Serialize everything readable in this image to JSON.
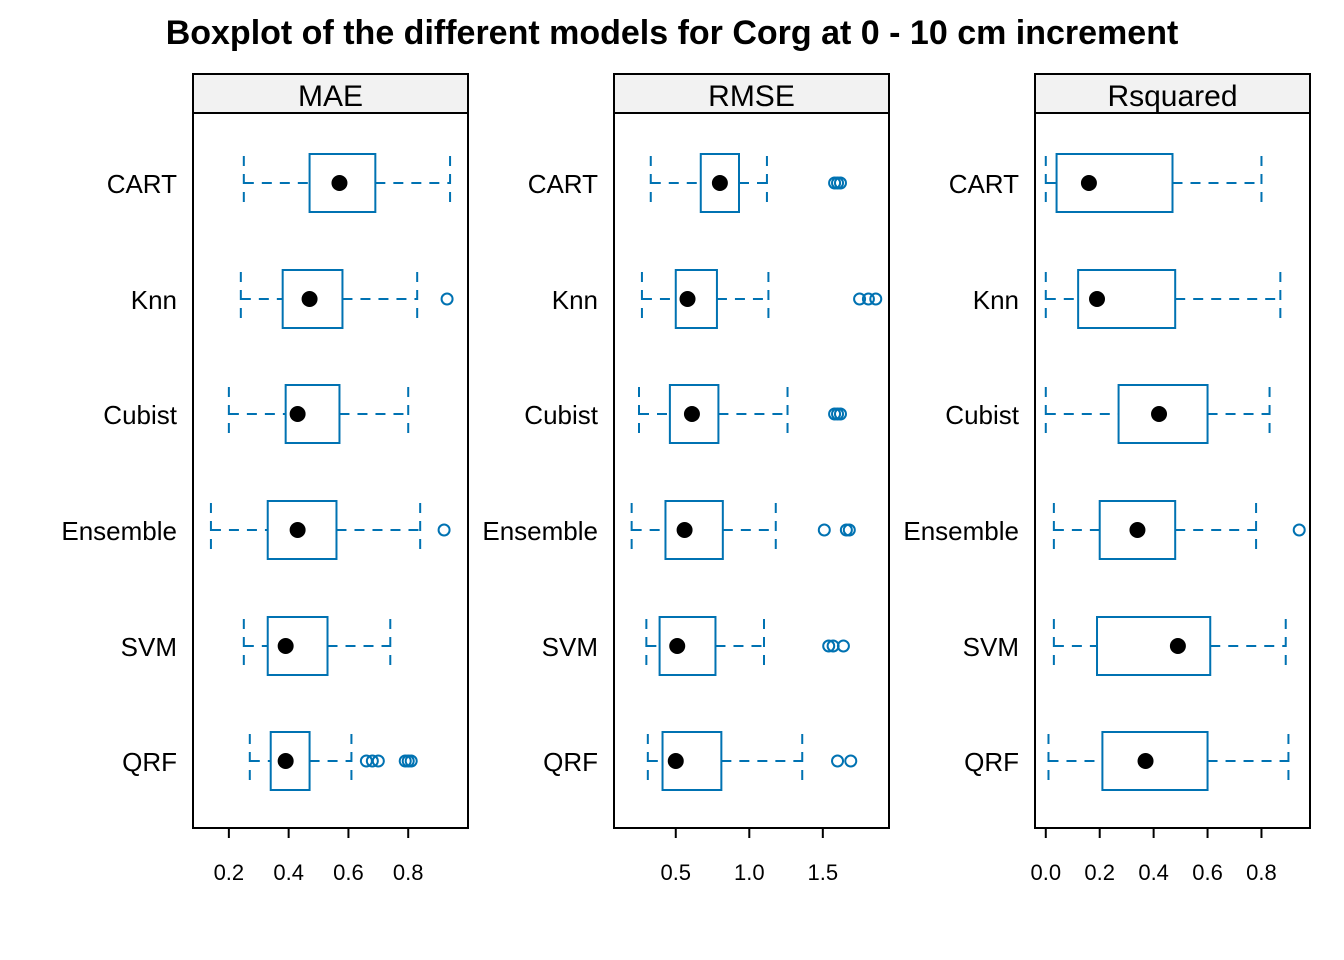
{
  "chart_data": {
    "type": "boxplot",
    "orientation": "horizontal",
    "title": "Boxplot of the different models for Corg at 0 - 10 cm increment",
    "categories": [
      "CART",
      "Knn",
      "Cubist",
      "Ensemble",
      "SVM",
      "QRF"
    ],
    "colors": {
      "box": "#0072B2",
      "median_dot": "#000000",
      "strip_bg": "#F2F2F2",
      "frame": "#000000"
    },
    "panels": [
      {
        "name": "MAE",
        "xlim": [
          0.08,
          1.0
        ],
        "ticks": [
          0.2,
          0.4,
          0.6,
          0.8
        ],
        "tick_labels": [
          "0.2",
          "0.4",
          "0.6",
          "0.8"
        ],
        "boxes": [
          {
            "model": "CART",
            "lower_whisker": 0.25,
            "q1": 0.47,
            "median": 0.57,
            "q3": 0.69,
            "upper_whisker": 0.94,
            "outliers": []
          },
          {
            "model": "Knn",
            "lower_whisker": 0.24,
            "q1": 0.38,
            "median": 0.47,
            "q3": 0.58,
            "upper_whisker": 0.83,
            "outliers": [
              0.93
            ]
          },
          {
            "model": "Cubist",
            "lower_whisker": 0.2,
            "q1": 0.39,
            "median": 0.43,
            "q3": 0.57,
            "upper_whisker": 0.8,
            "outliers": []
          },
          {
            "model": "Ensemble",
            "lower_whisker": 0.14,
            "q1": 0.33,
            "median": 0.43,
            "q3": 0.56,
            "upper_whisker": 0.84,
            "outliers": [
              0.92
            ]
          },
          {
            "model": "SVM",
            "lower_whisker": 0.25,
            "q1": 0.33,
            "median": 0.39,
            "q3": 0.53,
            "upper_whisker": 0.74,
            "outliers": []
          },
          {
            "model": "QRF",
            "lower_whisker": 0.27,
            "q1": 0.34,
            "median": 0.39,
            "q3": 0.47,
            "upper_whisker": 0.61,
            "outliers": [
              0.66,
              0.68,
              0.7,
              0.79,
              0.8,
              0.81
            ]
          }
        ]
      },
      {
        "name": "RMSE",
        "xlim": [
          0.08,
          1.95
        ],
        "ticks": [
          0.5,
          1.0,
          1.5
        ],
        "tick_labels": [
          "0.5",
          "1.0",
          "1.5"
        ],
        "boxes": [
          {
            "model": "CART",
            "lower_whisker": 0.33,
            "q1": 0.67,
            "median": 0.8,
            "q3": 0.93,
            "upper_whisker": 1.12,
            "outliers": [
              1.58,
              1.6,
              1.62
            ]
          },
          {
            "model": "Knn",
            "lower_whisker": 0.27,
            "q1": 0.5,
            "median": 0.58,
            "q3": 0.78,
            "upper_whisker": 1.13,
            "outliers": [
              1.75,
              1.81,
              1.86
            ]
          },
          {
            "model": "Cubist",
            "lower_whisker": 0.25,
            "q1": 0.46,
            "median": 0.61,
            "q3": 0.79,
            "upper_whisker": 1.26,
            "outliers": [
              1.58,
              1.6,
              1.62
            ]
          },
          {
            "model": "Ensemble",
            "lower_whisker": 0.2,
            "q1": 0.43,
            "median": 0.56,
            "q3": 0.82,
            "upper_whisker": 1.18,
            "outliers": [
              1.51,
              1.66,
              1.68
            ]
          },
          {
            "model": "SVM",
            "lower_whisker": 0.3,
            "q1": 0.39,
            "median": 0.51,
            "q3": 0.77,
            "upper_whisker": 1.1,
            "outliers": [
              1.54,
              1.57,
              1.64
            ]
          },
          {
            "model": "QRF",
            "lower_whisker": 0.31,
            "q1": 0.41,
            "median": 0.5,
            "q3": 0.81,
            "upper_whisker": 1.36,
            "outliers": [
              1.6,
              1.69
            ]
          }
        ]
      },
      {
        "name": "Rsquared",
        "xlim": [
          -0.04,
          0.98
        ],
        "ticks": [
          0.0,
          0.2,
          0.4,
          0.6,
          0.8
        ],
        "tick_labels": [
          "0.0",
          "0.2",
          "0.4",
          "0.6",
          "0.8"
        ],
        "boxes": [
          {
            "model": "CART",
            "lower_whisker": 0.0,
            "q1": 0.04,
            "median": 0.16,
            "q3": 0.47,
            "upper_whisker": 0.8,
            "outliers": []
          },
          {
            "model": "Knn",
            "lower_whisker": 0.0,
            "q1": 0.12,
            "median": 0.19,
            "q3": 0.48,
            "upper_whisker": 0.87,
            "outliers": []
          },
          {
            "model": "Cubist",
            "lower_whisker": 0.0,
            "q1": 0.27,
            "median": 0.42,
            "q3": 0.6,
            "upper_whisker": 0.83,
            "outliers": []
          },
          {
            "model": "Ensemble",
            "lower_whisker": 0.03,
            "q1": 0.2,
            "median": 0.34,
            "q3": 0.48,
            "upper_whisker": 0.78,
            "outliers": [
              0.94
            ]
          },
          {
            "model": "SVM",
            "lower_whisker": 0.03,
            "q1": 0.19,
            "median": 0.49,
            "q3": 0.61,
            "upper_whisker": 0.89,
            "outliers": []
          },
          {
            "model": "QRF",
            "lower_whisker": 0.01,
            "q1": 0.21,
            "median": 0.37,
            "q3": 0.6,
            "upper_whisker": 0.9,
            "outliers": []
          }
        ]
      }
    ]
  }
}
